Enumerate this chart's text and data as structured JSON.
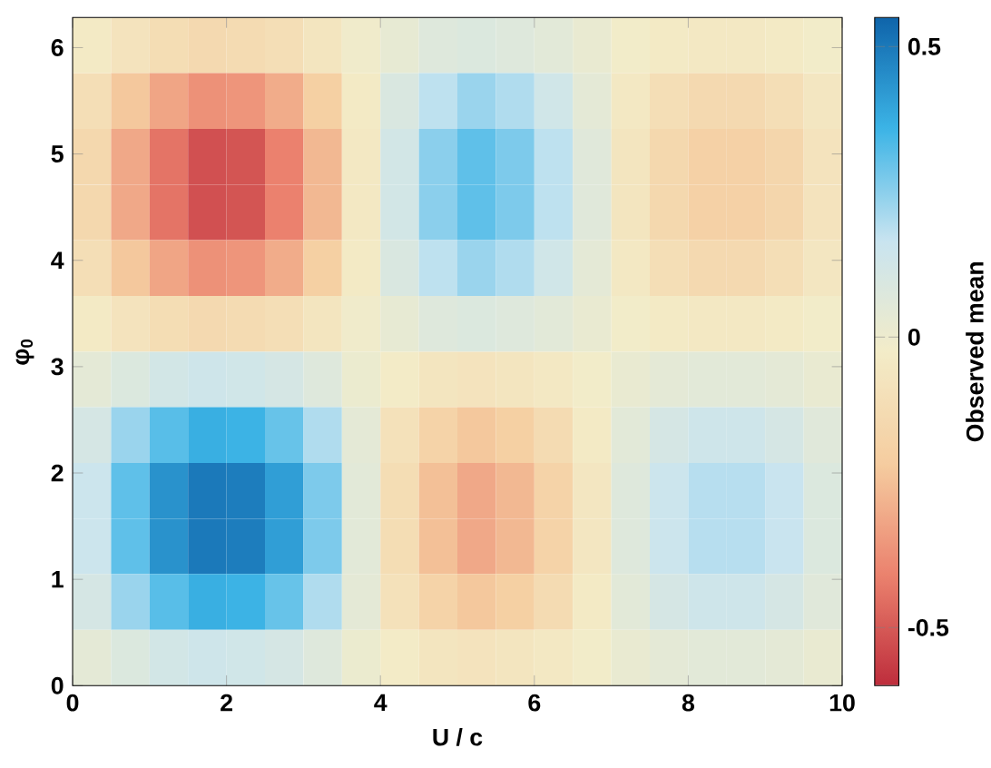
{
  "chart_data": {
    "type": "heatmap",
    "xlabel": "U / c",
    "ylabel": "φ$_{0}$",
    "clabel": "Observed mean",
    "x": [
      0.25,
      0.75,
      1.25,
      1.75,
      2.25,
      2.75,
      3.25,
      3.75,
      4.25,
      4.75,
      5.25,
      5.75,
      6.25,
      6.75,
      7.25,
      7.75,
      8.25,
      8.75,
      9.25,
      9.75
    ],
    "y": [
      6.02,
      5.5,
      4.97,
      4.45,
      3.93,
      3.4,
      2.88,
      2.36,
      1.83,
      1.31,
      0.79,
      0.26
    ],
    "xlim": [
      0,
      10
    ],
    "ylim": [
      0,
      6.283
    ],
    "xticks": [
      0,
      2,
      4,
      6,
      8,
      10
    ],
    "yticks": [
      0,
      1,
      2,
      3,
      4,
      5,
      6
    ],
    "clim": [
      -0.6,
      0.55
    ],
    "cticks": [
      -0.5,
      0,
      0.5
    ],
    "cells": [
      [
        -0.04,
        -0.08,
        -0.12,
        -0.14,
        -0.13,
        -0.11,
        -0.07,
        -0.01,
        0.03,
        0.07,
        0.08,
        0.07,
        0.05,
        0.02,
        -0.02,
        -0.04,
        -0.05,
        -0.05,
        -0.04,
        -0.02
      ],
      [
        -0.11,
        -0.23,
        -0.32,
        -0.37,
        -0.36,
        -0.3,
        -0.2,
        -0.04,
        0.09,
        0.18,
        0.23,
        0.2,
        0.13,
        0.04,
        -0.05,
        -0.11,
        -0.14,
        -0.14,
        -0.11,
        -0.06
      ],
      [
        -0.15,
        -0.31,
        -0.44,
        -0.52,
        -0.51,
        -0.41,
        -0.27,
        -0.05,
        0.12,
        0.25,
        0.31,
        0.27,
        0.18,
        0.06,
        -0.07,
        -0.15,
        -0.19,
        -0.19,
        -0.16,
        -0.08
      ],
      [
        -0.15,
        -0.31,
        -0.44,
        -0.52,
        -0.51,
        -0.41,
        -0.27,
        -0.05,
        0.12,
        0.25,
        0.31,
        0.27,
        0.18,
        0.06,
        -0.07,
        -0.15,
        -0.19,
        -0.19,
        -0.16,
        -0.08
      ],
      [
        -0.11,
        -0.23,
        -0.32,
        -0.37,
        -0.36,
        -0.3,
        -0.2,
        -0.04,
        0.09,
        0.18,
        0.23,
        0.2,
        0.13,
        0.04,
        -0.05,
        -0.11,
        -0.14,
        -0.14,
        -0.11,
        -0.06
      ],
      [
        -0.04,
        -0.08,
        -0.12,
        -0.14,
        -0.13,
        -0.11,
        -0.07,
        -0.01,
        0.03,
        0.07,
        0.08,
        0.07,
        0.05,
        0.02,
        -0.02,
        -0.04,
        -0.05,
        -0.05,
        -0.04,
        -0.02
      ],
      [
        0.04,
        0.08,
        0.12,
        0.14,
        0.13,
        0.11,
        0.07,
        0.01,
        -0.03,
        -0.07,
        -0.08,
        -0.07,
        -0.05,
        -0.02,
        0.02,
        0.04,
        0.05,
        0.05,
        0.04,
        0.02
      ],
      [
        0.11,
        0.23,
        0.32,
        0.37,
        0.36,
        0.3,
        0.2,
        0.04,
        -0.09,
        -0.18,
        -0.23,
        -0.2,
        -0.13,
        -0.04,
        0.05,
        0.11,
        0.14,
        0.14,
        0.11,
        0.06
      ],
      [
        0.15,
        0.31,
        0.44,
        0.5,
        0.49,
        0.41,
        0.27,
        0.05,
        -0.12,
        -0.25,
        -0.31,
        -0.27,
        -0.18,
        -0.06,
        0.07,
        0.15,
        0.19,
        0.19,
        0.16,
        0.08
      ],
      [
        0.15,
        0.31,
        0.44,
        0.5,
        0.49,
        0.41,
        0.27,
        0.05,
        -0.12,
        -0.25,
        -0.31,
        -0.27,
        -0.18,
        -0.06,
        0.07,
        0.15,
        0.19,
        0.19,
        0.16,
        0.08
      ],
      [
        0.11,
        0.23,
        0.32,
        0.37,
        0.36,
        0.3,
        0.2,
        0.04,
        -0.09,
        -0.18,
        -0.23,
        -0.2,
        -0.13,
        -0.04,
        0.05,
        0.11,
        0.14,
        0.14,
        0.11,
        0.06
      ],
      [
        0.04,
        0.08,
        0.12,
        0.14,
        0.13,
        0.11,
        0.07,
        0.01,
        -0.03,
        -0.07,
        -0.08,
        -0.07,
        -0.05,
        -0.02,
        0.02,
        0.04,
        0.05,
        0.05,
        0.04,
        0.02
      ]
    ]
  }
}
